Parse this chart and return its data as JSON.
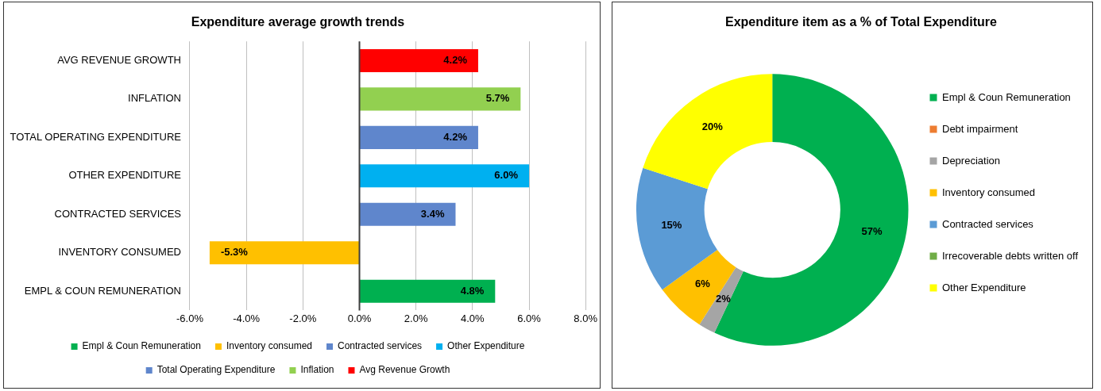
{
  "chart_data": [
    {
      "type": "bar",
      "orientation": "horizontal",
      "title": "Expenditure average growth trends",
      "categories": [
        "AVG REVENUE GROWTH",
        "INFLATION",
        "TOTAL OPERATING EXPENDITURE",
        "OTHER EXPENDITURE",
        "CONTRACTED SERVICES",
        "INVENTORY CONSUMED",
        "EMPL & COUN REMUNERATION"
      ],
      "series": [
        {
          "name": "Empl & Coun Remuneration",
          "color": "#00b050",
          "values": [
            null,
            null,
            null,
            null,
            null,
            null,
            4.8
          ],
          "value_labels": [
            null,
            null,
            null,
            null,
            null,
            null,
            "4.8%"
          ]
        },
        {
          "name": "Inventory consumed",
          "color": "#ffc000",
          "values": [
            null,
            null,
            null,
            null,
            null,
            -5.3,
            null
          ],
          "value_labels": [
            null,
            null,
            null,
            null,
            null,
            "-5.3%",
            null
          ]
        },
        {
          "name": "Contracted services",
          "color": "#5f86cc",
          "values": [
            null,
            null,
            null,
            null,
            3.4,
            null,
            null
          ],
          "value_labels": [
            null,
            null,
            null,
            null,
            "3.4%",
            null,
            null
          ]
        },
        {
          "name": "Other Expenditure",
          "color": "#00b0f0",
          "values": [
            null,
            null,
            null,
            6.0,
            null,
            null,
            null
          ],
          "value_labels": [
            null,
            null,
            null,
            "6.0%",
            null,
            null,
            null
          ]
        },
        {
          "name": "Total Operating Expenditure",
          "color": "#5f86cc",
          "values": [
            null,
            null,
            4.2,
            null,
            null,
            null,
            null
          ],
          "value_labels": [
            null,
            null,
            "4.2%",
            null,
            null,
            null,
            null
          ]
        },
        {
          "name": "Inflation",
          "color": "#92d050",
          "values": [
            null,
            5.7,
            null,
            null,
            null,
            null,
            null
          ],
          "value_labels": [
            null,
            "5.7%",
            null,
            null,
            null,
            null,
            null
          ]
        },
        {
          "name": "Avg Revenue Growth",
          "color": "#ff0000",
          "values": [
            4.2,
            null,
            null,
            null,
            null,
            null,
            null
          ],
          "value_labels": [
            "4.2%",
            null,
            null,
            null,
            null,
            null,
            null
          ]
        }
      ],
      "xlim": [
        -6,
        8
      ],
      "xticks": [
        {
          "value": -6,
          "label": "-6.0%"
        },
        {
          "value": -4,
          "label": "-4.0%"
        },
        {
          "value": -2,
          "label": "-2.0%"
        },
        {
          "value": 0,
          "label": "0.0%"
        },
        {
          "value": 2,
          "label": "2.0%"
        },
        {
          "value": 4,
          "label": "4.0%"
        },
        {
          "value": 6,
          "label": "6.0%"
        },
        {
          "value": 8,
          "label": "8.0%"
        }
      ],
      "grid": "x",
      "legend": "bottom"
    },
    {
      "type": "donut",
      "title": "Expenditure item as a % of Total Expenditure",
      "categories": [
        "Empl & Coun Remuneration",
        "Debt impairment",
        "Depreciation",
        "Inventory consumed",
        "Contracted services",
        "Irrecoverable debts written off",
        "Other Expenditure"
      ],
      "values": [
        57,
        0,
        2,
        6,
        15,
        0,
        20
      ],
      "colors": [
        "#00b050",
        "#ed7d31",
        "#a5a5a5",
        "#ffc000",
        "#5b9bd5",
        "#70ad47",
        "#ffff00"
      ],
      "value_labels": [
        "57%",
        null,
        "2%",
        "6%",
        "15%",
        null,
        "20%"
      ],
      "legend": "right"
    }
  ]
}
